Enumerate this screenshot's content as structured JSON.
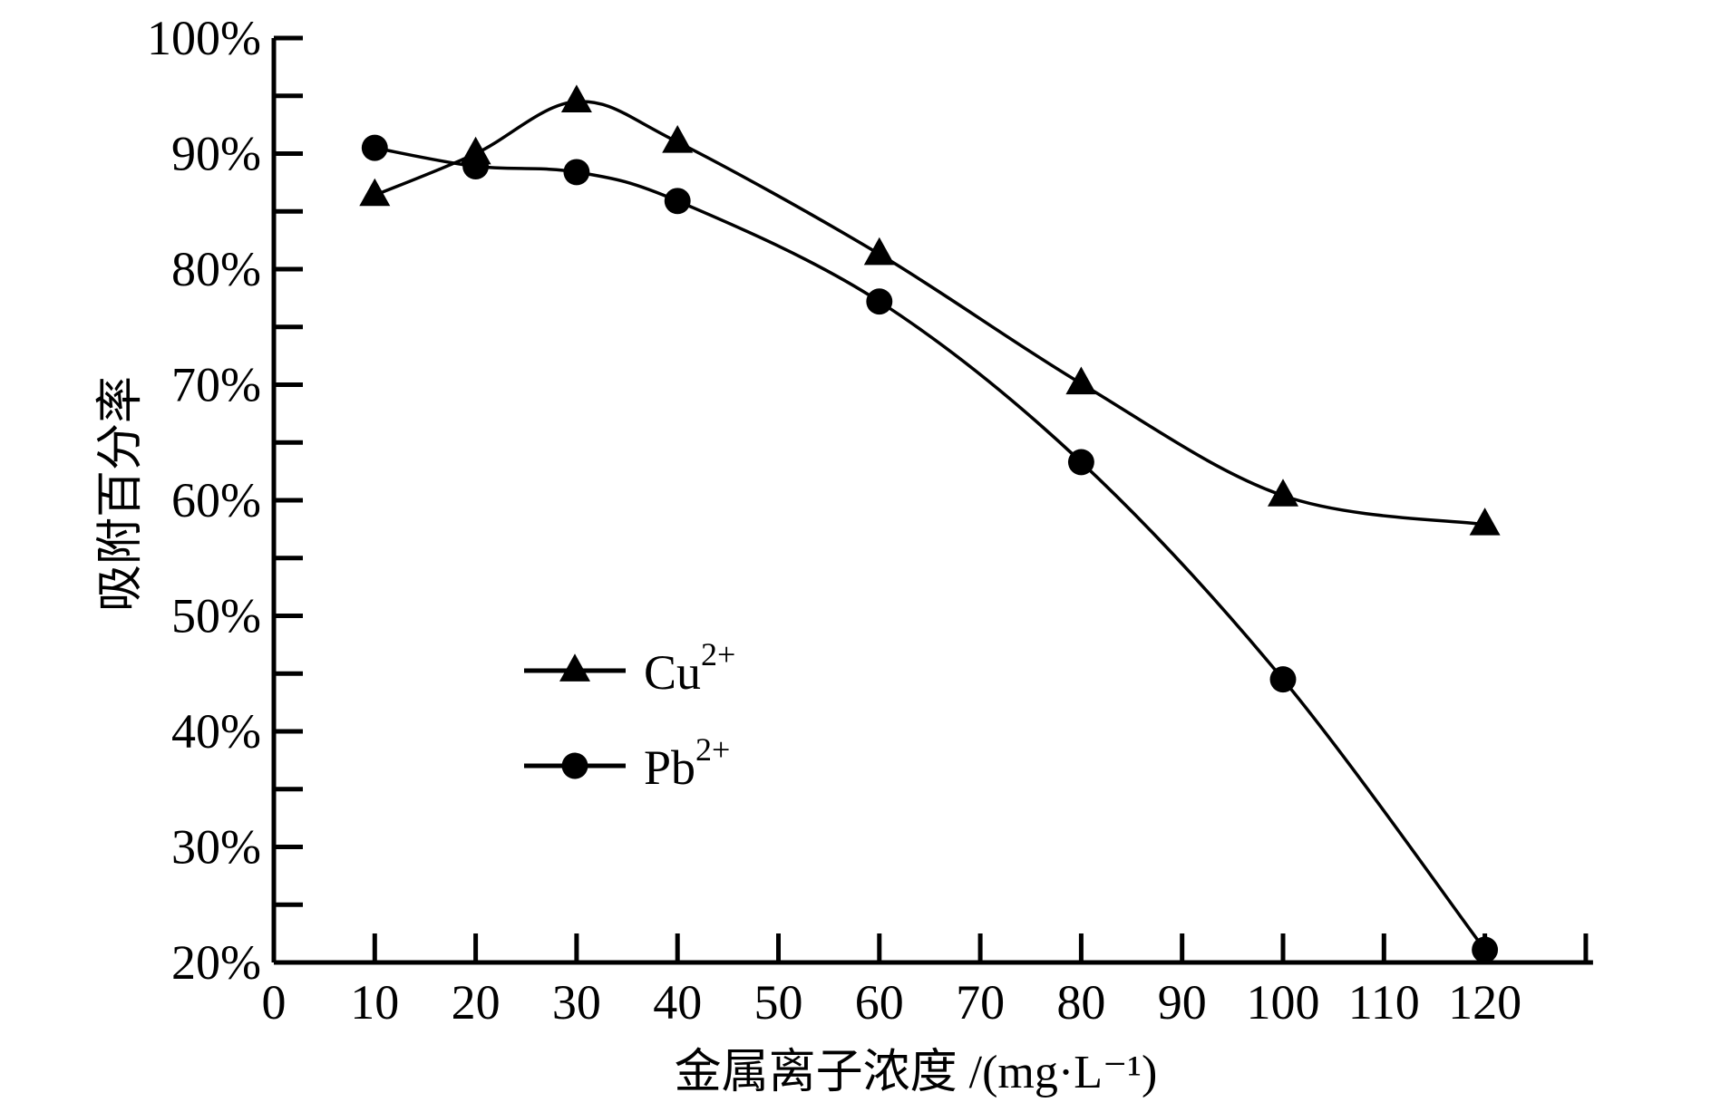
{
  "chart_data": {
    "type": "line",
    "xlabel": "金属离子浓度 /(mg·L⁻¹)",
    "ylabel": "吸附百分率",
    "xlim": [
      0,
      130
    ],
    "ylim": [
      20,
      100
    ],
    "x_ticks": [
      0,
      10,
      20,
      30,
      40,
      50,
      60,
      70,
      80,
      90,
      100,
      110,
      120
    ],
    "y_ticks": [
      "20%",
      "30%",
      "40%",
      "50%",
      "60%",
      "70%",
      "80%",
      "90%",
      "100%"
    ],
    "grid": false,
    "legend_placement": "center-left",
    "series": [
      {
        "name": "Cu2+",
        "label_base": "Cu",
        "label_sup": "2+",
        "marker": "triangle",
        "x": [
          10,
          20,
          30,
          40,
          60,
          80,
          100,
          120
        ],
        "y": [
          86.4,
          90.0,
          94.5,
          91.0,
          81.3,
          70.1,
          60.4,
          57.9
        ]
      },
      {
        "name": "Pb2+",
        "label_base": "Pb",
        "label_sup": "2+",
        "marker": "circle",
        "x": [
          10,
          20,
          30,
          40,
          60,
          80,
          100,
          120
        ],
        "y": [
          90.5,
          88.9,
          88.4,
          85.9,
          77.2,
          63.3,
          44.5,
          21.1
        ]
      }
    ],
    "color": "#000000"
  }
}
